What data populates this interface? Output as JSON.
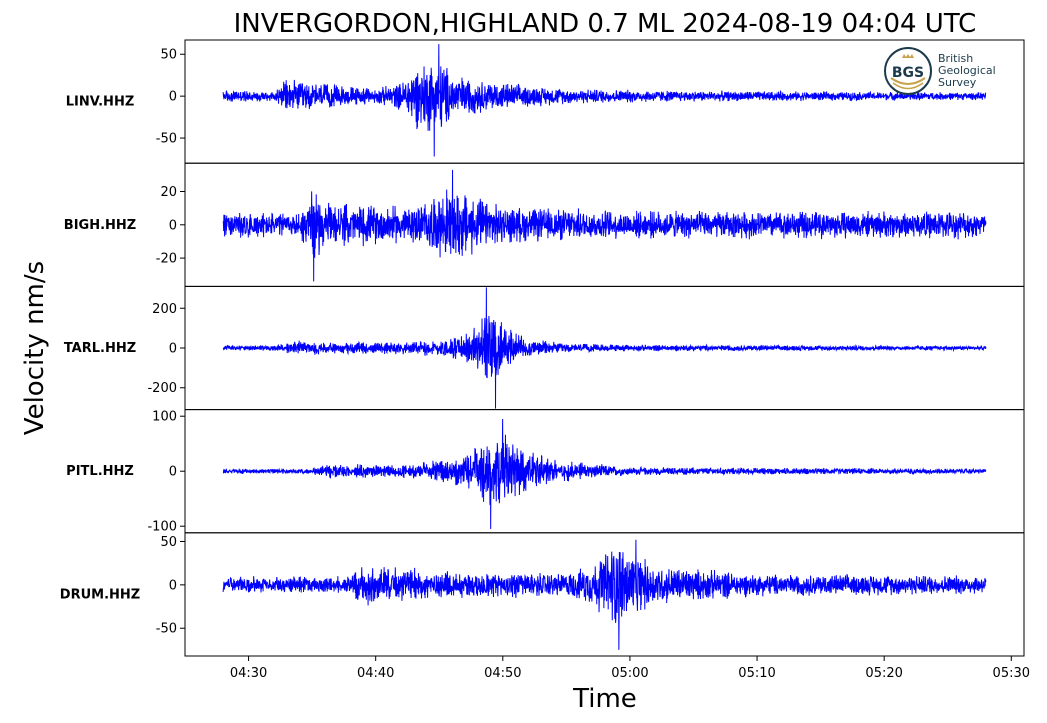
{
  "chart_data": {
    "type": "line",
    "title": "INVERGORDON,HIGHLAND 0.7 ML   2024-08-19 04:04 UTC",
    "ylabel": "Velocity nm/s",
    "xlabel": "Time",
    "xlim": [
      "04:25",
      "05:31"
    ],
    "x_ticks": [
      "04:30",
      "04:40",
      "04:50",
      "05:00",
      "05:10",
      "05:20",
      "05:30"
    ],
    "trace_time_range": [
      "04:28",
      "05:28"
    ],
    "line_color": "#0000ff",
    "logo_text": [
      "BGS",
      "British",
      "Geological",
      "Survey"
    ],
    "panels": [
      {
        "name": "LINV.HHZ",
        "ylim": [
          -80,
          67
        ],
        "y_ticks": [
          50,
          0,
          -50
        ],
        "y_tick_labels": [
          "50",
          "0",
          "-50"
        ],
        "peak_min": -72,
        "peak_max": 62,
        "envelope": [
          {
            "t": "04:28",
            "a": 8
          },
          {
            "t": "04:32",
            "a": 7
          },
          {
            "t": "04:33",
            "a": 22
          },
          {
            "t": "04:37",
            "a": 15
          },
          {
            "t": "04:40",
            "a": 10
          },
          {
            "t": "04:42",
            "a": 18
          },
          {
            "t": "04:43",
            "a": 40
          },
          {
            "t": "04:45",
            "a": 55
          },
          {
            "t": "04:46",
            "a": 30
          },
          {
            "t": "04:48",
            "a": 22
          },
          {
            "t": "04:52",
            "a": 14
          },
          {
            "t": "04:55",
            "a": 10
          },
          {
            "t": "05:05",
            "a": 7
          },
          {
            "t": "05:15",
            "a": 6
          },
          {
            "t": "05:28",
            "a": 5
          }
        ]
      },
      {
        "name": "BIGH.HHZ",
        "ylim": [
          -37,
          37
        ],
        "y_ticks": [
          20,
          0,
          -20
        ],
        "y_tick_labels": [
          "20",
          "0",
          "-20"
        ],
        "peak_min": -34,
        "peak_max": 33,
        "envelope": [
          {
            "t": "04:28",
            "a": 9
          },
          {
            "t": "04:34",
            "a": 8
          },
          {
            "t": "04:35",
            "a": 25
          },
          {
            "t": "04:36",
            "a": 14
          },
          {
            "t": "04:43",
            "a": 12
          },
          {
            "t": "04:45",
            "a": 20
          },
          {
            "t": "04:46",
            "a": 28
          },
          {
            "t": "04:48",
            "a": 18
          },
          {
            "t": "04:50",
            "a": 12
          },
          {
            "t": "05:00",
            "a": 9
          },
          {
            "t": "05:28",
            "a": 9
          }
        ]
      },
      {
        "name": "TARL.HHZ",
        "ylim": [
          -310,
          310
        ],
        "y_ticks": [
          200,
          0,
          -200
        ],
        "y_tick_labels": [
          "200",
          "0",
          "-200"
        ],
        "peak_min": -305,
        "peak_max": 305,
        "envelope": [
          {
            "t": "04:28",
            "a": 15
          },
          {
            "t": "04:32",
            "a": 15
          },
          {
            "t": "04:34",
            "a": 40
          },
          {
            "t": "04:37",
            "a": 30
          },
          {
            "t": "04:43",
            "a": 35
          },
          {
            "t": "04:47",
            "a": 70
          },
          {
            "t": "04:48",
            "a": 150
          },
          {
            "t": "04:49",
            "a": 260
          },
          {
            "t": "04:50",
            "a": 140
          },
          {
            "t": "04:52",
            "a": 50
          },
          {
            "t": "04:55",
            "a": 25
          },
          {
            "t": "05:00",
            "a": 18
          },
          {
            "t": "05:28",
            "a": 12
          }
        ]
      },
      {
        "name": "PITL.HHZ",
        "ylim": [
          -112,
          112
        ],
        "y_ticks": [
          100,
          0,
          -100
        ],
        "y_tick_labels": [
          "100",
          "0",
          "-100"
        ],
        "peak_min": -105,
        "peak_max": 95,
        "envelope": [
          {
            "t": "04:28",
            "a": 5
          },
          {
            "t": "04:35",
            "a": 5
          },
          {
            "t": "04:36",
            "a": 15
          },
          {
            "t": "04:42",
            "a": 12
          },
          {
            "t": "04:47",
            "a": 30
          },
          {
            "t": "04:49",
            "a": 75
          },
          {
            "t": "04:50",
            "a": 80
          },
          {
            "t": "04:52",
            "a": 40
          },
          {
            "t": "04:55",
            "a": 20
          },
          {
            "t": "05:00",
            "a": 8
          },
          {
            "t": "05:28",
            "a": 5
          }
        ]
      },
      {
        "name": "DRUM.HHZ",
        "ylim": [
          -82,
          60
        ],
        "y_ticks": [
          50,
          0,
          -50
        ],
        "y_tick_labels": [
          "50",
          "0",
          "-50"
        ],
        "peak_min": -75,
        "peak_max": 52,
        "envelope": [
          {
            "t": "04:28",
            "a": 10
          },
          {
            "t": "04:38",
            "a": 12
          },
          {
            "t": "04:39",
            "a": 25
          },
          {
            "t": "04:45",
            "a": 18
          },
          {
            "t": "04:55",
            "a": 15
          },
          {
            "t": "04:57",
            "a": 25
          },
          {
            "t": "04:59",
            "a": 60
          },
          {
            "t": "05:00",
            "a": 45
          },
          {
            "t": "05:02",
            "a": 25
          },
          {
            "t": "05:10",
            "a": 14
          },
          {
            "t": "05:28",
            "a": 12
          }
        ]
      }
    ]
  }
}
